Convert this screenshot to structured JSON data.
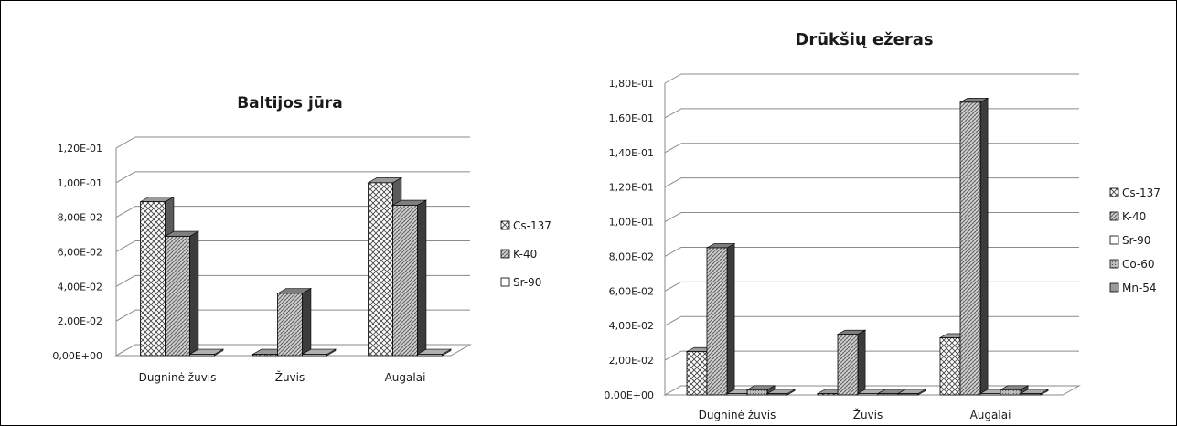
{
  "chart_data": [
    {
      "type": "bar",
      "title": "Baltijos jūra",
      "categories": [
        "Dugninė žuvis",
        "Žuvis",
        "Augalai"
      ],
      "series": [
        {
          "name": "Cs-137",
          "values": [
            0.089,
            0.0,
            0.1
          ]
        },
        {
          "name": "K-40",
          "values": [
            0.069,
            0.036,
            0.087
          ]
        },
        {
          "name": "Sr-90",
          "values": [
            0.0,
            0.0,
            0.0
          ]
        }
      ],
      "ylim": [
        0,
        0.12
      ],
      "ytick_labels": [
        "0,00E+00",
        "2,00E-02",
        "4,00E-02",
        "6,00E-02",
        "8,00E-02",
        "1,00E-01",
        "1,20E-01"
      ],
      "legend": "right",
      "grid": true
    },
    {
      "type": "bar",
      "title": "Drūkšių ežeras",
      "categories": [
        "Dugninė žuvis",
        "Žuvis",
        "Augalai"
      ],
      "series": [
        {
          "name": "Cs-137",
          "values": [
            0.025,
            0.0,
            0.033
          ]
        },
        {
          "name": "K-40",
          "values": [
            0.085,
            0.035,
            0.169
          ]
        },
        {
          "name": "Sr-90",
          "values": [
            0.0,
            0.0,
            0.0
          ]
        },
        {
          "name": "Co-60",
          "values": [
            0.003,
            0.0,
            0.003
          ]
        },
        {
          "name": "Mn-54",
          "values": [
            0.0,
            0.0,
            0.0
          ]
        }
      ],
      "ylim": [
        0,
        0.18
      ],
      "ytick_labels": [
        "0,00E+00",
        "2,00E-02",
        "4,00E-02",
        "6,00E-02",
        "8,00E-02",
        "1,00E-01",
        "1,20E-01",
        "1,40E-01",
        "1,60E-01",
        "1,80E-01"
      ],
      "legend": "right",
      "grid": true
    }
  ]
}
